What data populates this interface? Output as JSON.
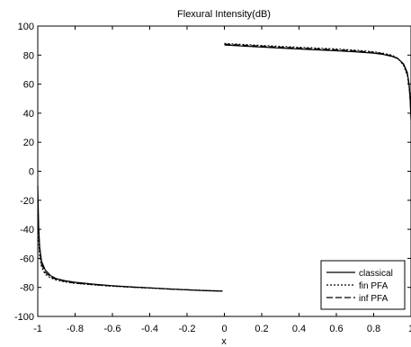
{
  "chart_data": {
    "type": "line",
    "title": "Flexural Intensity(dB)",
    "xlabel": "x",
    "ylabel": "",
    "xlim": [
      -1,
      1
    ],
    "ylim": [
      -100,
      100
    ],
    "xticks": [
      -1,
      -0.8,
      -0.6,
      -0.4,
      -0.2,
      0,
      0.2,
      0.4,
      0.6,
      0.8,
      1
    ],
    "xtick_labels": [
      "-1",
      "-0.8",
      "-0.6",
      "-0.4",
      "-0.2",
      "0",
      "0.2",
      "0.4",
      "0.6",
      "0.8",
      "1"
    ],
    "yticks": [
      -100,
      -80,
      -60,
      -40,
      -20,
      0,
      20,
      40,
      60,
      80,
      100
    ],
    "ytick_labels": [
      "-100",
      "-80",
      "-60",
      "-40",
      "-20",
      "0",
      "20",
      "40",
      "60",
      "80",
      "100"
    ],
    "grid": false,
    "legend_position": "bottom-right",
    "series": [
      {
        "name": "classical",
        "style": "solid",
        "segments": [
          {
            "x": [
              -1.0,
              -0.995,
              -0.99,
              -0.98,
              -0.96,
              -0.93,
              -0.9,
              -0.85,
              -0.8,
              -0.7,
              -0.6,
              -0.5,
              -0.4,
              -0.3,
              -0.2,
              -0.1,
              -0.01
            ],
            "y": [
              -10,
              -38,
              -52,
              -62,
              -68,
              -72,
              -74,
              -75.5,
              -76.5,
              -77.8,
              -78.8,
              -79.6,
              -80.3,
              -81.0,
              -81.7,
              -82.3,
              -82.6
            ]
          },
          {
            "x": [
              0.0,
              0.1,
              0.2,
              0.3,
              0.4,
              0.5,
              0.6,
              0.7,
              0.8,
              0.85,
              0.9,
              0.93,
              0.96,
              0.98,
              0.99,
              0.995,
              1.0
            ],
            "y": [
              87.0,
              86.2,
              85.5,
              84.8,
              84.2,
              83.6,
              83.0,
              82.3,
              81.3,
              80.5,
              79.0,
              77.5,
              74.0,
              68.0,
              60.0,
              50.0,
              35.0
            ]
          }
        ]
      },
      {
        "name": "fin PFA",
        "style": "dotted",
        "segments": [
          {
            "x": [
              -1.0,
              -0.995,
              -0.99,
              -0.98,
              -0.96,
              -0.93,
              -0.9,
              -0.85,
              -0.8,
              -0.7,
              -0.6,
              -0.5,
              -0.4,
              -0.3,
              -0.2,
              -0.1,
              -0.01
            ],
            "y": [
              -30,
              -48,
              -58,
              -66,
              -71,
              -73.5,
              -75,
              -76.3,
              -77.2,
              -78.3,
              -79.2,
              -79.9,
              -80.5,
              -81.1,
              -81.7,
              -82.1,
              -82.4
            ]
          },
          {
            "x": [
              0.0,
              0.1,
              0.2,
              0.3,
              0.4,
              0.5,
              0.6,
              0.7,
              0.8,
              0.85,
              0.9,
              0.93,
              0.96,
              0.98,
              0.99,
              0.995,
              1.0
            ],
            "y": [
              88.0,
              87.3,
              86.6,
              86.0,
              85.4,
              84.8,
              84.2,
              83.4,
              82.3,
              81.3,
              79.8,
              77.8,
              73.0,
              66.0,
              58.0,
              50.0,
              40.0
            ]
          }
        ]
      },
      {
        "name": "inf PFA",
        "style": "dashed",
        "segments": [
          {
            "x": [
              -1.0,
              -0.995,
              -0.99,
              -0.98,
              -0.96,
              -0.93,
              -0.9,
              -0.85,
              -0.8,
              -0.7,
              -0.6,
              -0.5,
              -0.4,
              -0.3,
              -0.2,
              -0.1,
              -0.01
            ],
            "y": [
              -20,
              -42,
              -55,
              -64,
              -69.5,
              -72.8,
              -74.5,
              -76.0,
              -77.0,
              -78.1,
              -79.0,
              -79.8,
              -80.4,
              -81.1,
              -81.7,
              -82.2,
              -82.5
            ]
          },
          {
            "x": [
              0.0,
              0.1,
              0.2,
              0.3,
              0.4,
              0.5,
              0.6,
              0.7,
              0.8,
              0.85,
              0.9,
              0.93,
              0.96,
              0.98,
              0.99,
              0.995,
              1.0
            ],
            "y": [
              87.5,
              86.8,
              86.1,
              85.4,
              84.8,
              84.2,
              83.6,
              82.9,
              81.8,
              80.9,
              79.4,
              77.6,
              73.5,
              67.0,
              59.0,
              50.0,
              38.0
            ]
          }
        ]
      }
    ]
  }
}
